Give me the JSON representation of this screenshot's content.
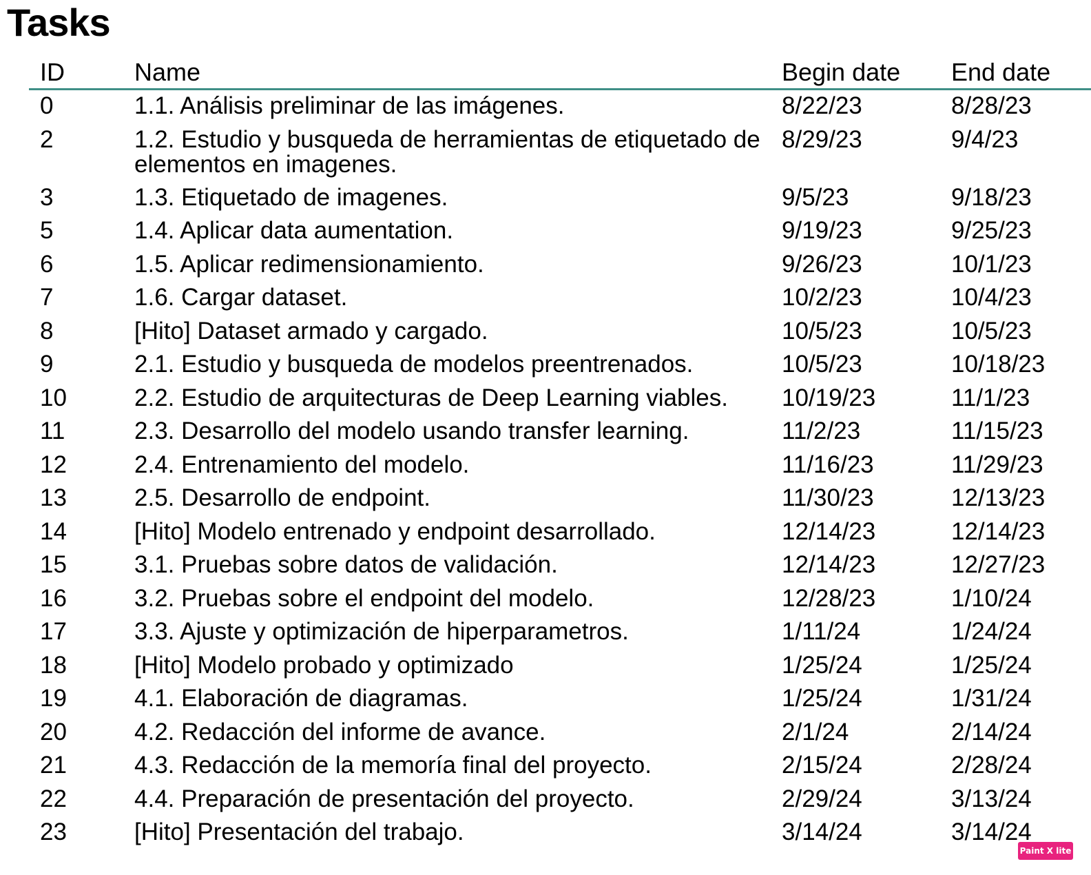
{
  "title": "Tasks",
  "headers": {
    "id": "ID",
    "name": "Name",
    "begin": "Begin date",
    "end": "End date"
  },
  "rows": [
    {
      "id": "0",
      "name": "1.1.  Análisis preliminar de las imágenes.",
      "begin": "8/22/23",
      "end": "8/28/23"
    },
    {
      "id": "2",
      "name": "1.2.  Estudio y busqueda de herramientas de etiquetado de elementos en imagenes.",
      "begin": "8/29/23",
      "end": "9/4/23"
    },
    {
      "id": "3",
      "name": "1.3.  Etiquetado de imagenes.",
      "begin": "9/5/23",
      "end": "9/18/23"
    },
    {
      "id": "5",
      "name": "1.4.  Aplicar data aumentation.",
      "begin": "9/19/23",
      "end": "9/25/23"
    },
    {
      "id": "6",
      "name": "1.5.  Aplicar redimensionamiento.",
      "begin": "9/26/23",
      "end": "10/1/23"
    },
    {
      "id": "7",
      "name": "1.6.  Cargar dataset.",
      "begin": "10/2/23",
      "end": "10/4/23"
    },
    {
      "id": "8",
      "name": "[Hito] Dataset armado y cargado.",
      "begin": "10/5/23",
      "end": "10/5/23"
    },
    {
      "id": "9",
      "name": "2.1.  Estudio y busqueda de modelos preentrenados.",
      "begin": "10/5/23",
      "end": "10/18/23"
    },
    {
      "id": "10",
      "name": "2.2.  Estudio de arquitecturas de Deep Learning viables.",
      "begin": "10/19/23",
      "end": "11/1/23"
    },
    {
      "id": "11",
      "name": "2.3.  Desarrollo del modelo usando transfer learning.",
      "begin": "11/2/23",
      "end": "11/15/23"
    },
    {
      "id": "12",
      "name": "2.4.  Entrenamiento del modelo.",
      "begin": "11/16/23",
      "end": "11/29/23"
    },
    {
      "id": "13",
      "name": "2.5.  Desarrollo de endpoint.",
      "begin": "11/30/23",
      "end": "12/13/23"
    },
    {
      "id": "14",
      "name": "[Hito] Modelo entrenado y endpoint desarrollado.",
      "begin": "12/14/23",
      "end": "12/14/23"
    },
    {
      "id": "15",
      "name": "3.1.  Pruebas sobre datos de validación.",
      "begin": "12/14/23",
      "end": "12/27/23"
    },
    {
      "id": "16",
      "name": "3.2.  Pruebas sobre el endpoint del modelo.",
      "begin": "12/28/23",
      "end": "1/10/24"
    },
    {
      "id": "17",
      "name": "3.3.  Ajuste y optimización de hiperparametros.",
      "begin": "1/11/24",
      "end": "1/24/24"
    },
    {
      "id": "18",
      "name": "[Hito] Modelo probado y optimizado",
      "begin": "1/25/24",
      "end": "1/25/24"
    },
    {
      "id": "19",
      "name": "4.1.  Elaboración de diagramas.",
      "begin": "1/25/24",
      "end": "1/31/24"
    },
    {
      "id": "20",
      "name": "4.2.  Redacción del informe de avance.",
      "begin": "2/1/24",
      "end": "2/14/24"
    },
    {
      "id": "21",
      "name": "4.3.  Redacción de la memoría final del proyecto.",
      "begin": "2/15/24",
      "end": "2/28/24"
    },
    {
      "id": "22",
      "name": "4.4.  Preparación de presentación del proyecto.",
      "begin": "2/29/24",
      "end": "3/13/24"
    },
    {
      "id": "23",
      "name": "[Hito] Presentación del trabajo.",
      "begin": "3/14/24",
      "end": "3/14/24"
    }
  ],
  "watermark": "Paint X lite"
}
